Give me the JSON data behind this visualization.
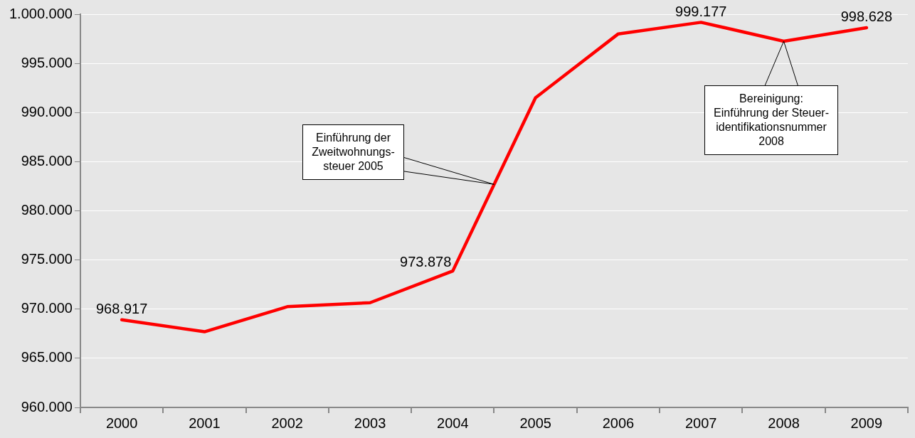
{
  "chart_data": {
    "type": "line",
    "categories": [
      "2000",
      "2001",
      "2002",
      "2003",
      "2004",
      "2005",
      "2006",
      "2007",
      "2008",
      "2009"
    ],
    "series": [
      {
        "color": "#ff0000",
        "values": [
          968917,
          967700,
          970250,
          970650,
          973878,
          991500,
          998000,
          999177,
          997250,
          998628
        ],
        "value_labels": [
          "968.917",
          null,
          null,
          null,
          "973.878",
          null,
          null,
          "999.177",
          null,
          "998.628"
        ]
      }
    ],
    "ylim": [
      960000,
      1000000
    ],
    "yticks": [
      {
        "value": 960000,
        "label": "960.000"
      },
      {
        "value": 965000,
        "label": "965.000"
      },
      {
        "value": 970000,
        "label": "970.000"
      },
      {
        "value": 975000,
        "label": "975.000"
      },
      {
        "value": 980000,
        "label": "980.000"
      },
      {
        "value": 985000,
        "label": "985.000"
      },
      {
        "value": 990000,
        "label": "990.000"
      },
      {
        "value": 995000,
        "label": "995.000"
      },
      {
        "value": 1000000,
        "label": "1.000.000"
      }
    ],
    "grid": "y",
    "marker": "none",
    "line_style": "solid",
    "annotations": [
      "Einführung der\nZweitwohnungs-\nsteuer 2005",
      "Bereinigung:\nEinführung der Steuer-\nidentifikationsnummer\n2008"
    ]
  }
}
